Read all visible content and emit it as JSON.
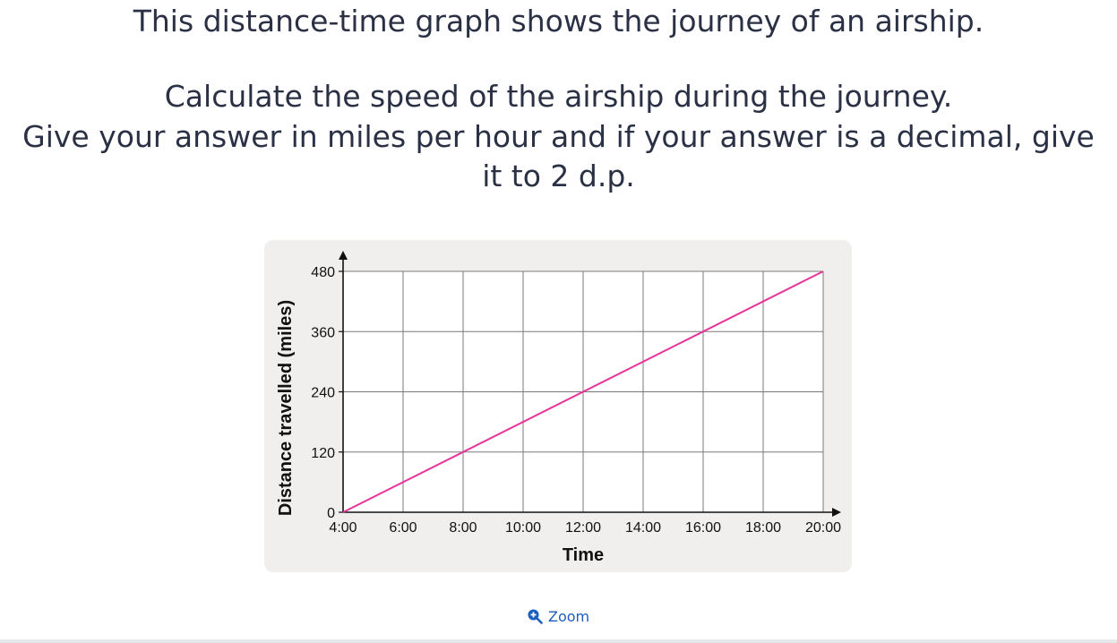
{
  "question": {
    "line1": "This distance-time graph shows the journey of an airship.",
    "line2": "Calculate the speed of the airship during the journey.",
    "line3": "Give your answer in miles per hour and if your answer is a decimal, give",
    "line4": "it to 2 d.p."
  },
  "zoom_label": "Zoom",
  "chart_data": {
    "type": "line",
    "xlabel": "Time",
    "ylabel": "Distance travelled (miles)",
    "x_ticks": [
      "4:00",
      "6:00",
      "8:00",
      "10:00",
      "12:00",
      "14:00",
      "16:00",
      "18:00",
      "20:00"
    ],
    "y_ticks": [
      0,
      120,
      240,
      360,
      480
    ],
    "xlim": [
      "4:00",
      "20:00"
    ],
    "ylim": [
      0,
      480
    ],
    "grid": true,
    "series": [
      {
        "color": "#e8339a",
        "points": [
          {
            "x": "4:00",
            "y": 0
          },
          {
            "x": "20:00",
            "y": 480
          }
        ]
      }
    ]
  }
}
